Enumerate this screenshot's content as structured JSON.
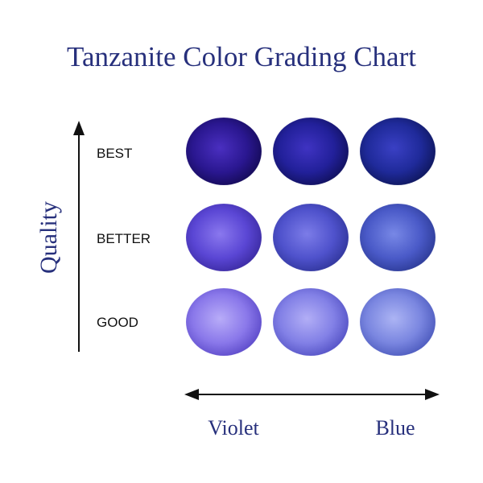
{
  "header": {
    "title": "Tanzanite Color Grading Chart"
  },
  "y_axis": {
    "label": "Quality",
    "rows": [
      "BEST",
      "BETTER",
      "GOOD"
    ]
  },
  "x_axis": {
    "labels": [
      "Violet",
      "Blue"
    ]
  }
}
